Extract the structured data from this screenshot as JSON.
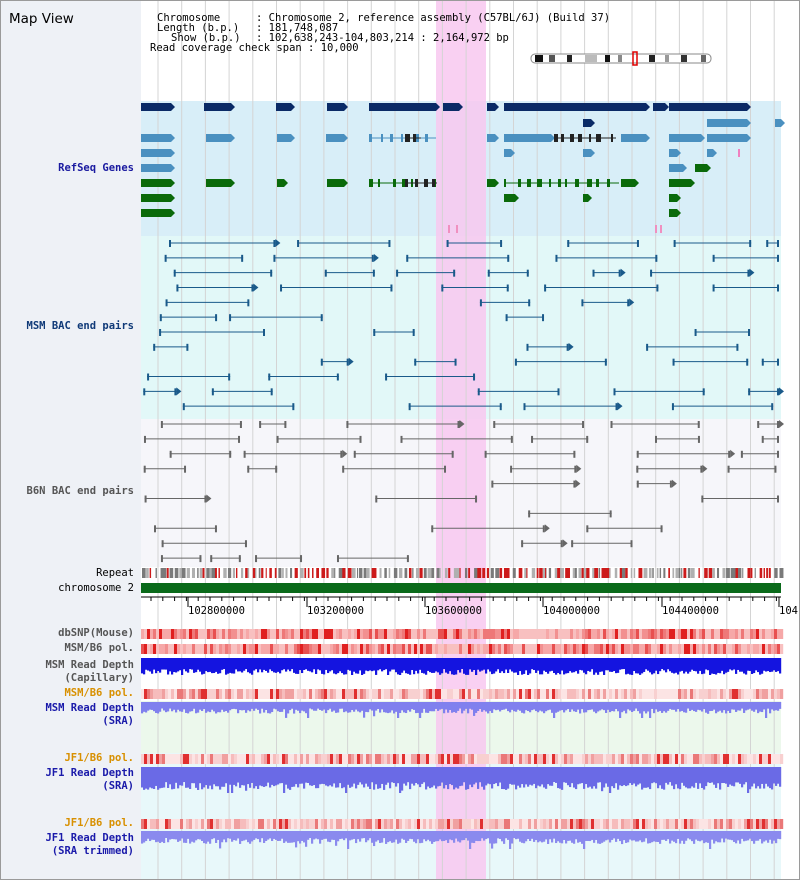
{
  "view_title": "Map View",
  "info": {
    "chromosome_label": "Chromosome",
    "chromosome_value": "Chromosome 2, reference assembly (C57BL/6J) (Build 37)",
    "length_label": "Length (b.p.)",
    "length_value": "181,748,087",
    "show_label": "Show (b.p.)",
    "show_value": "102,638,243-104,803,214 : 2,164,972 bp",
    "coverage_label": "Read coverage check span",
    "coverage_value": "10,000"
  },
  "tracks": {
    "refseq": "RefSeq Genes",
    "msm_bac": "MSM BAC end pairs",
    "b6n_bac": "B6N BAC end pairs",
    "repeat": "Repeat",
    "chromosome": "chromosome 2",
    "dbsnp": "dbSNP(Mouse)",
    "msm_b6_pol_1": "MSM/B6 pol.",
    "msm_depth_cap_1": "MSM Read Depth",
    "msm_depth_cap_2": "(Capillary)",
    "msm_b6_pol_2": "MSM/B6 pol.",
    "msm_depth_sra_1": "MSM Read Depth",
    "msm_depth_sra_2": "(SRA)",
    "jf1_b6_pol_1": "JF1/B6 pol.",
    "jf1_depth_sra_1": "JF1 Read Depth",
    "jf1_depth_sra_2": "(SRA)",
    "jf1_b6_pol_2": "JF1/B6 pol.",
    "jf1_depth_trim_1": "JF1 Read Depth",
    "jf1_depth_trim_2": "(SRA trimmed)"
  },
  "axis": {
    "ticks": [
      "102800000",
      "103200000",
      "103600000",
      "104000000",
      "104400000",
      "104"
    ]
  },
  "colors": {
    "refseq_label": "#1a1aa0",
    "msm_label": "#103a78",
    "b6n_label": "#555555",
    "pol_orange": "#d89000",
    "depth_blue": "#1a1acc",
    "dark_gene": "#0a2a66",
    "light_gene": "#4a90c0",
    "green_gene": "#0a6a0a",
    "highlight": "#f8c8f0",
    "chromosome_bar": "#0a6a1a"
  }
}
